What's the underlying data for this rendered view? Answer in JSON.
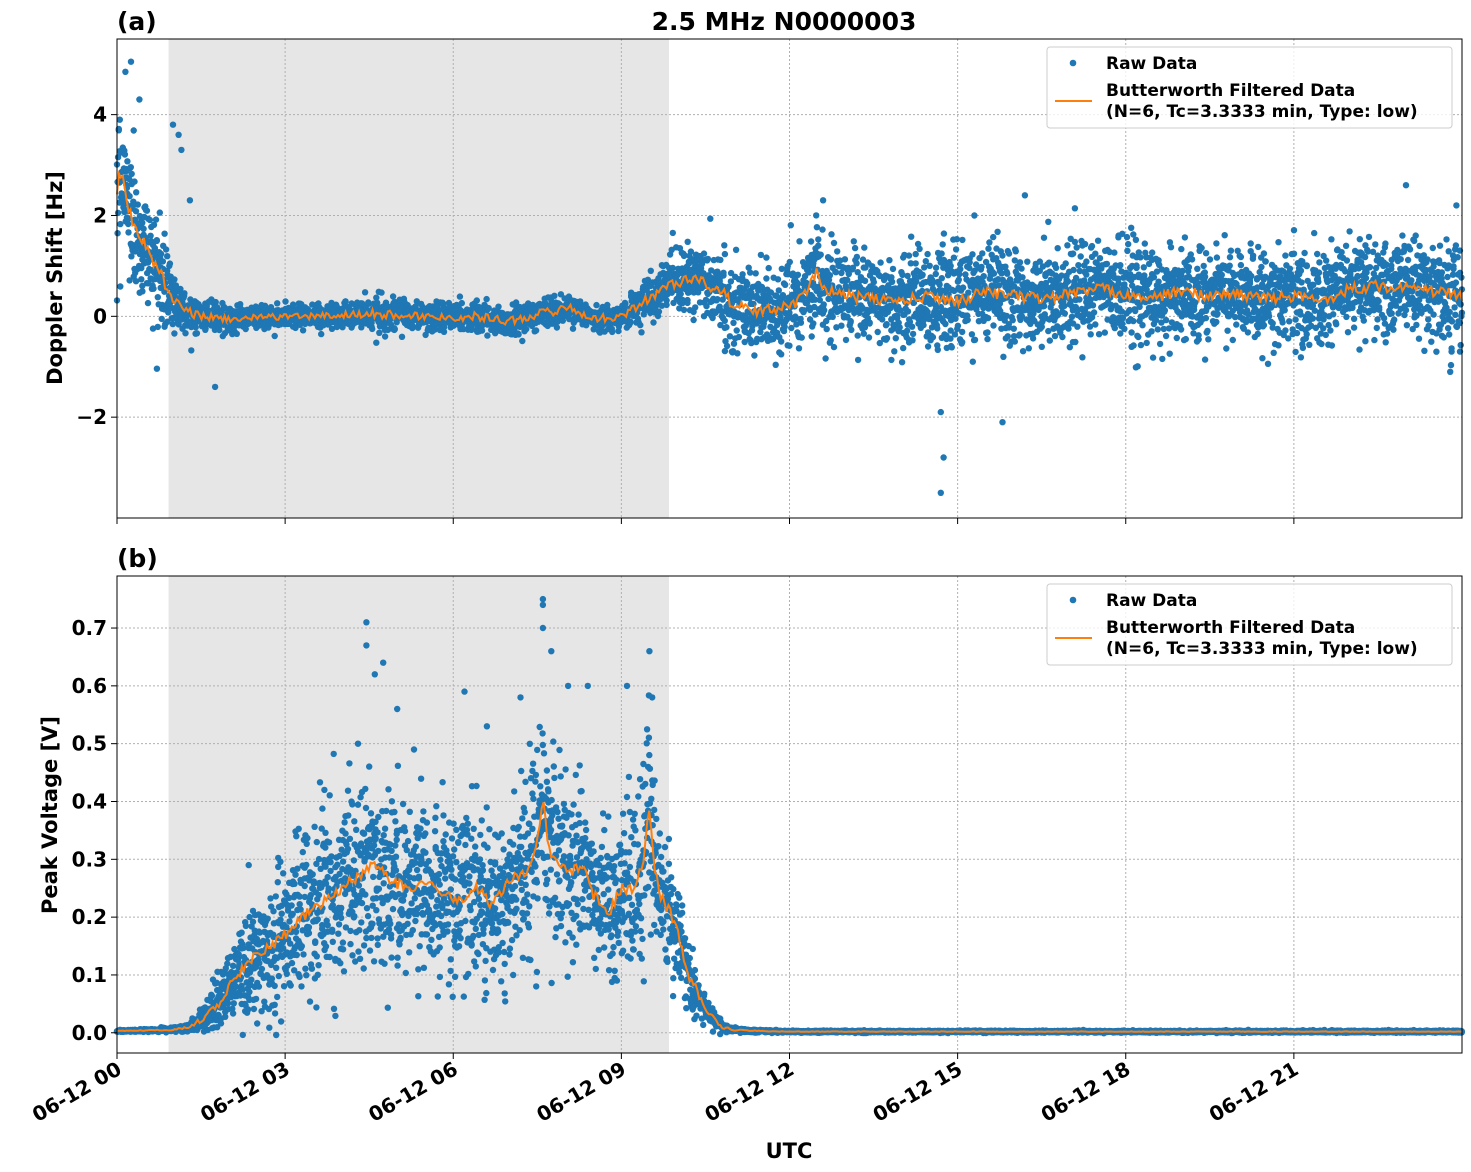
{
  "figure": {
    "title": "2.5 MHz N0000003",
    "xlabel": "UTC",
    "x_ticks": [
      "06-12 00",
      "06-12 03",
      "06-12 06",
      "06-12 09",
      "06-12 12",
      "06-12 15",
      "06-12 18",
      "06-12 21"
    ],
    "colors": {
      "raw": "#1f77b4",
      "filtered": "#ff7f0e",
      "shade": "#e6e6e6",
      "grid": "#b0b0b0"
    }
  },
  "chart_data": [
    {
      "type": "scatter",
      "panel_label": "(a)",
      "title": "2.5 MHz N0000003",
      "xlabel": "",
      "ylabel": "Doppler Shift [Hz]",
      "xlim": [
        0,
        24
      ],
      "x_unit": "hours after 06-12 00 UTC",
      "ylim": [
        -4.0,
        5.5
      ],
      "y_ticks": [
        "−2",
        "0",
        "2",
        "4"
      ],
      "y_tick_values": [
        -2,
        0,
        2,
        4
      ],
      "grid": true,
      "legend_position": "upper right",
      "legend": [
        "Raw Data",
        "Butterworth Filtered Data",
        "(N=6, Tc=3.3333 min, Type: low)"
      ],
      "shaded_interval": [
        0.92,
        9.85
      ],
      "series": [
        {
          "name": "Butterworth Filtered Data",
          "style": "line",
          "x": [
            0,
            0.05,
            0.1,
            0.2,
            0.3,
            0.4,
            0.5,
            0.6,
            0.7,
            0.8,
            0.9,
            1.0,
            1.2,
            1.5,
            2.0,
            2.5,
            3.0,
            3.5,
            4.0,
            4.5,
            5.0,
            5.5,
            6.0,
            6.5,
            7.0,
            7.5,
            7.8,
            8.0,
            8.5,
            9.0,
            9.3,
            9.6,
            9.9,
            10.2,
            10.5,
            10.8,
            11.0,
            11.5,
            12.0,
            12.3,
            12.5,
            12.6,
            13.0,
            13.5,
            14.0,
            14.5,
            15.0,
            15.5,
            16.0,
            16.5,
            17.0,
            17.5,
            18.0,
            18.5,
            19.0,
            19.5,
            20.0,
            20.5,
            21.0,
            21.5,
            22.0,
            22.5,
            23.0,
            23.5,
            24.0
          ],
          "y": [
            2.4,
            2.9,
            2.8,
            2.2,
            1.8,
            1.6,
            1.4,
            1.2,
            1.0,
            0.8,
            0.5,
            0.3,
            0.1,
            0.0,
            -0.05,
            -0.03,
            0.0,
            0.0,
            0.02,
            0.05,
            0.03,
            0.0,
            -0.02,
            0.0,
            -0.1,
            0.05,
            0.1,
            0.2,
            -0.05,
            0.0,
            0.2,
            0.45,
            0.65,
            0.75,
            0.65,
            0.5,
            0.2,
            0.1,
            0.2,
            0.45,
            1.0,
            0.55,
            0.4,
            0.35,
            0.3,
            0.4,
            0.3,
            0.5,
            0.4,
            0.35,
            0.45,
            0.55,
            0.45,
            0.35,
            0.5,
            0.4,
            0.45,
            0.35,
            0.4,
            0.3,
            0.55,
            0.6,
            0.55,
            0.5,
            0.4
          ]
        },
        {
          "name": "Raw Data",
          "style": "scatter",
          "x": [
            0,
            0.05,
            0.1,
            0.2,
            0.3,
            0.4,
            0.5,
            0.6,
            0.7,
            0.8,
            0.9,
            1.0,
            1.2,
            1.5,
            2.0,
            2.5,
            3.0,
            3.5,
            4.0,
            4.5,
            5.0,
            5.5,
            6.0,
            6.5,
            7.0,
            7.5,
            7.8,
            8.0,
            8.5,
            9.0,
            9.3,
            9.6,
            9.9,
            10.2,
            10.5,
            10.8,
            11.0,
            11.5,
            12.0,
            12.3,
            12.5,
            12.6,
            13.0,
            13.5,
            14.0,
            14.5,
            15.0,
            15.5,
            16.0,
            16.5,
            17.0,
            17.5,
            18.0,
            18.5,
            19.0,
            19.5,
            20.0,
            20.5,
            21.0,
            21.5,
            22.0,
            22.5,
            23.0,
            23.5,
            24.0
          ],
          "y_center": [
            2.4,
            2.9,
            2.8,
            2.2,
            1.8,
            1.6,
            1.4,
            1.2,
            1.0,
            0.8,
            0.5,
            0.3,
            0.1,
            0.0,
            -0.05,
            -0.03,
            0.0,
            0.0,
            0.02,
            0.05,
            0.03,
            0.0,
            -0.02,
            0.0,
            -0.1,
            0.05,
            0.1,
            0.2,
            -0.05,
            0.0,
            0.2,
            0.45,
            0.65,
            0.75,
            0.65,
            0.5,
            0.2,
            0.1,
            0.2,
            0.45,
            1.0,
            0.55,
            0.4,
            0.35,
            0.3,
            0.4,
            0.3,
            0.5,
            0.4,
            0.35,
            0.45,
            0.55,
            0.45,
            0.35,
            0.5,
            0.4,
            0.45,
            0.35,
            0.4,
            0.3,
            0.55,
            0.6,
            0.55,
            0.5,
            0.4
          ],
          "y_spread": [
            1.8,
            1.8,
            1.7,
            1.6,
            1.5,
            1.4,
            1.4,
            1.3,
            1.2,
            1.1,
            1.0,
            0.8,
            0.5,
            0.3,
            0.3,
            0.25,
            0.25,
            0.3,
            0.3,
            0.35,
            0.35,
            0.3,
            0.3,
            0.35,
            0.35,
            0.35,
            0.35,
            0.35,
            0.3,
            0.3,
            0.4,
            0.5,
            0.6,
            0.7,
            0.8,
            0.9,
            1.0,
            1.0,
            1.0,
            1.1,
            1.2,
            1.1,
            1.0,
            1.0,
            1.1,
            1.2,
            1.2,
            1.1,
            1.1,
            1.1,
            1.1,
            1.1,
            1.1,
            1.1,
            1.1,
            1.1,
            1.1,
            1.1,
            1.1,
            1.1,
            1.1,
            1.1,
            1.1,
            1.1,
            1.1
          ],
          "outliers": [
            [
              0.15,
              4.85
            ],
            [
              0.25,
              5.05
            ],
            [
              0.4,
              4.3
            ],
            [
              1.0,
              3.8
            ],
            [
              1.1,
              3.6
            ],
            [
              1.15,
              3.3
            ],
            [
              1.3,
              2.3
            ],
            [
              1.75,
              -1.4
            ],
            [
              12.6,
              2.3
            ],
            [
              14.7,
              -1.9
            ],
            [
              14.75,
              -2.8
            ],
            [
              14.7,
              -3.5
            ],
            [
              15.3,
              2.0
            ],
            [
              16.2,
              2.4
            ],
            [
              15.8,
              -2.1
            ],
            [
              23.0,
              2.6
            ],
            [
              23.9,
              2.2
            ]
          ]
        }
      ]
    },
    {
      "type": "scatter",
      "panel_label": "(b)",
      "title": "",
      "xlabel": "UTC",
      "ylabel": "Peak Voltage [V]",
      "xlim": [
        0,
        24
      ],
      "x_unit": "hours after 06-12 00 UTC",
      "ylim": [
        -0.035,
        0.79
      ],
      "y_ticks": [
        "0.0",
        "0.1",
        "0.2",
        "0.3",
        "0.4",
        "0.5",
        "0.6",
        "0.7"
      ],
      "y_tick_values": [
        0.0,
        0.1,
        0.2,
        0.3,
        0.4,
        0.5,
        0.6,
        0.7
      ],
      "grid": true,
      "legend_position": "upper right",
      "legend": [
        "Raw Data",
        "Butterworth Filtered Data",
        "(N=6, Tc=3.3333 min, Type: low)"
      ],
      "shaded_interval": [
        0.92,
        9.85
      ],
      "series": [
        {
          "name": "Butterworth Filtered Data",
          "style": "line",
          "x": [
            0,
            0.5,
            1.0,
            1.3,
            1.6,
            1.8,
            2.0,
            2.3,
            2.6,
            3.0,
            3.3,
            3.6,
            4.0,
            4.3,
            4.6,
            4.9,
            5.2,
            5.5,
            5.8,
            6.1,
            6.4,
            6.7,
            7.0,
            7.3,
            7.5,
            7.6,
            7.7,
            7.9,
            8.1,
            8.3,
            8.5,
            8.8,
            9.0,
            9.2,
            9.4,
            9.5,
            9.6,
            9.7,
            9.8,
            10.0,
            10.2,
            10.4,
            10.6,
            10.8,
            11.0,
            11.5,
            12.0,
            13.0,
            16.0,
            20.0,
            24.0
          ],
          "y": [
            0.003,
            0.004,
            0.005,
            0.01,
            0.03,
            0.05,
            0.08,
            0.12,
            0.14,
            0.17,
            0.2,
            0.22,
            0.25,
            0.27,
            0.29,
            0.26,
            0.25,
            0.26,
            0.24,
            0.23,
            0.25,
            0.22,
            0.26,
            0.28,
            0.33,
            0.41,
            0.32,
            0.29,
            0.28,
            0.29,
            0.24,
            0.21,
            0.25,
            0.25,
            0.3,
            0.39,
            0.28,
            0.24,
            0.22,
            0.18,
            0.1,
            0.06,
            0.03,
            0.01,
            0.005,
            0.003,
            0.002,
            0.002,
            0.002,
            0.002,
            0.002
          ]
        },
        {
          "name": "Raw Data",
          "style": "scatter",
          "x": [
            0,
            0.5,
            1.0,
            1.3,
            1.6,
            1.8,
            2.0,
            2.3,
            2.6,
            3.0,
            3.3,
            3.6,
            4.0,
            4.3,
            4.6,
            4.9,
            5.2,
            5.5,
            5.8,
            6.1,
            6.4,
            6.7,
            7.0,
            7.3,
            7.5,
            7.6,
            7.7,
            7.9,
            8.1,
            8.3,
            8.5,
            8.8,
            9.0,
            9.2,
            9.4,
            9.5,
            9.6,
            9.7,
            9.8,
            10.0,
            10.2,
            10.4,
            10.6,
            10.8,
            11.0,
            11.5,
            12.0,
            13.0,
            16.0,
            20.0,
            24.0
          ],
          "y_center": [
            0.003,
            0.004,
            0.005,
            0.01,
            0.03,
            0.05,
            0.08,
            0.12,
            0.14,
            0.17,
            0.2,
            0.22,
            0.25,
            0.27,
            0.29,
            0.26,
            0.25,
            0.26,
            0.24,
            0.23,
            0.25,
            0.22,
            0.26,
            0.28,
            0.33,
            0.41,
            0.32,
            0.29,
            0.28,
            0.29,
            0.24,
            0.21,
            0.25,
            0.25,
            0.3,
            0.39,
            0.28,
            0.24,
            0.22,
            0.18,
            0.1,
            0.06,
            0.03,
            0.01,
            0.005,
            0.003,
            0.002,
            0.002,
            0.002,
            0.002,
            0.002
          ],
          "y_spread": [
            0.002,
            0.003,
            0.004,
            0.01,
            0.03,
            0.05,
            0.07,
            0.1,
            0.12,
            0.14,
            0.16,
            0.17,
            0.18,
            0.19,
            0.2,
            0.18,
            0.17,
            0.18,
            0.17,
            0.16,
            0.17,
            0.16,
            0.17,
            0.18,
            0.2,
            0.22,
            0.2,
            0.19,
            0.18,
            0.18,
            0.17,
            0.15,
            0.16,
            0.17,
            0.18,
            0.2,
            0.16,
            0.13,
            0.12,
            0.1,
            0.07,
            0.04,
            0.02,
            0.01,
            0.005,
            0.003,
            0.002,
            0.002,
            0.002,
            0.002,
            0.002
          ],
          "outliers": [
            [
              2.35,
              0.29
            ],
            [
              3.2,
              0.34
            ],
            [
              3.7,
              0.42
            ],
            [
              4.3,
              0.5
            ],
            [
              4.45,
              0.71
            ],
            [
              4.45,
              0.67
            ],
            [
              4.6,
              0.62
            ],
            [
              4.75,
              0.64
            ],
            [
              5.0,
              0.56
            ],
            [
              5.3,
              0.49
            ],
            [
              6.2,
              0.59
            ],
            [
              6.6,
              0.53
            ],
            [
              7.2,
              0.58
            ],
            [
              7.6,
              0.75
            ],
            [
              7.6,
              0.74
            ],
            [
              7.6,
              0.7
            ],
            [
              7.75,
              0.66
            ],
            [
              8.05,
              0.6
            ],
            [
              8.4,
              0.6
            ],
            [
              9.1,
              0.6
            ],
            [
              9.5,
              0.66
            ],
            [
              9.55,
              0.58
            ]
          ]
        }
      ]
    }
  ]
}
